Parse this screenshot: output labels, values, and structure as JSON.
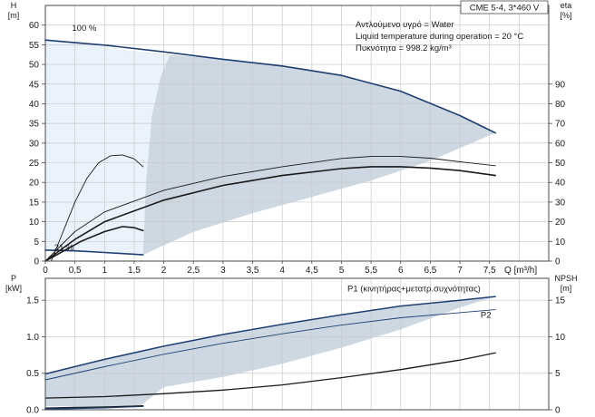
{
  "chart_data": [
    {
      "type": "line",
      "id": "performance",
      "title_box": "CME 5-4, 3*460 V",
      "info_lines": [
        "Αντλούμενο υγρό = Water",
        "Liquid temperature during operation = 20 °C",
        "Πυκνότητα = 998.2 kg/m³"
      ],
      "xlabel": "Q [m³/h]",
      "xlim": [
        0,
        8.5
      ],
      "x_ticks": [
        "0",
        "0,5",
        "1",
        "1,5",
        "2",
        "2,5",
        "3",
        "3,5",
        "4",
        "4,5",
        "5",
        "5,5",
        "6",
        "6,5",
        "7",
        "7,5"
      ],
      "x_tick_values": [
        0,
        0.5,
        1,
        1.5,
        2,
        2.5,
        3,
        3.5,
        4,
        4.5,
        5,
        5.5,
        6,
        6.5,
        7,
        7.5
      ],
      "left_axis": {
        "label": "H",
        "unit": "[m]",
        "ylim": [
          0,
          65
        ],
        "ticks": [
          "0",
          "5",
          "10",
          "15",
          "20",
          "25",
          "30",
          "35",
          "40",
          "45",
          "50",
          "55",
          "60"
        ],
        "tick_values": [
          0,
          5,
          10,
          15,
          20,
          25,
          30,
          35,
          40,
          45,
          50,
          55,
          60
        ]
      },
      "right_axis": {
        "label": "eta",
        "unit": "[%]",
        "ylim": [
          0,
          130
        ],
        "ticks": [
          "0",
          "10",
          "20",
          "30",
          "40",
          "50",
          "60",
          "70",
          "80",
          "90"
        ],
        "tick_values": [
          0,
          10,
          20,
          30,
          40,
          50,
          60,
          70,
          80,
          90
        ]
      },
      "annotations": [
        {
          "text": "100 %",
          "x": 0.45,
          "y": 58.5
        },
        {
          "text": "21 %",
          "x": 0.15,
          "y": 2.8
        }
      ],
      "grid": true,
      "region": {
        "upper": [
          [
            0,
            56.2
          ],
          [
            0.5,
            55.6
          ],
          [
            1,
            54.5
          ],
          [
            1.5,
            53.2
          ],
          [
            2,
            52.6
          ],
          [
            3,
            51.3
          ],
          [
            4,
            49.6
          ],
          [
            5,
            47.2
          ],
          [
            6,
            43.2
          ],
          [
            7,
            37.0
          ],
          [
            7.6,
            32.6
          ]
        ],
        "lower": [
          [
            7.6,
            32.6
          ],
          [
            6.5,
            25.5
          ],
          [
            5.5,
            20.5
          ],
          [
            4.5,
            16.3
          ],
          [
            3.5,
            12.2
          ],
          [
            2.5,
            7.4
          ],
          [
            2,
            4.0
          ],
          [
            1.65,
            1.6
          ],
          [
            1,
            2.2
          ],
          [
            0.5,
            2.6
          ],
          [
            0,
            2.8
          ]
        ],
        "unreachable_boundary": [
          [
            1.65,
            1.6
          ],
          [
            1.7,
            20
          ],
          [
            1.8,
            37
          ],
          [
            1.95,
            47
          ],
          [
            2.1,
            52.3
          ]
        ]
      },
      "series": [
        {
          "name": "",
          "axis": "left",
          "curve": "head",
          "points": [
            [
              0,
              56.2
            ],
            [
              1,
              54.9
            ],
            [
              2,
              53.2
            ],
            [
              3,
              51.3
            ],
            [
              4,
              49.6
            ],
            [
              5,
              47.2
            ],
            [
              6,
              43.2
            ],
            [
              7,
              37.0
            ],
            [
              7.6,
              32.6
            ]
          ],
          "color": "#1f3f73",
          "width": 1.6
        },
        {
          "name": "",
          "axis": "left",
          "curve": "head",
          "points": [
            [
              0,
              2.8
            ],
            [
              0.5,
              2.6
            ],
            [
              1,
              2.2
            ],
            [
              1.65,
              1.6
            ]
          ],
          "color": "#1f3f73",
          "width": 1.6
        },
        {
          "name": "",
          "axis": "right",
          "curve": "efficiency",
          "points": [
            [
              0.1,
              0
            ],
            [
              0.3,
              15
            ],
            [
              0.5,
              30
            ],
            [
              0.7,
              42
            ],
            [
              0.9,
              50
            ],
            [
              1.1,
              53.5
            ],
            [
              1.3,
              54
            ],
            [
              1.5,
              52
            ],
            [
              1.65,
              48
            ]
          ],
          "color": "#1a1a1a",
          "width": 0.9
        },
        {
          "name": "",
          "axis": "right",
          "curve": "efficiency",
          "points": [
            [
              0,
              0
            ],
            [
              0.5,
              15
            ],
            [
              1,
              25
            ],
            [
              2,
              36
            ],
            [
              3,
              43
            ],
            [
              4,
              48
            ],
            [
              5,
              52.2
            ],
            [
              5.5,
              53.2
            ],
            [
              6,
              53.2
            ],
            [
              6.5,
              52.3
            ],
            [
              7,
              50.5
            ],
            [
              7.6,
              48.5
            ]
          ],
          "color": "#1a1a1a",
          "width": 0.9
        },
        {
          "name": "",
          "axis": "right",
          "curve": "efficiency",
          "points": [
            [
              0,
              0
            ],
            [
              0.5,
              11
            ],
            [
              1,
              20
            ],
            [
              2,
              31
            ],
            [
              3,
              38.5
            ],
            [
              4,
              43.5
            ],
            [
              5,
              47
            ],
            [
              5.5,
              48
            ],
            [
              6,
              48
            ],
            [
              6.5,
              47.3
            ],
            [
              7,
              46
            ],
            [
              7.6,
              43.5
            ]
          ],
          "color": "#1a1a1a",
          "width": 1.6
        },
        {
          "name": "",
          "axis": "right",
          "curve": "efficiency",
          "points": [
            [
              0,
              0
            ],
            [
              0.3,
              5
            ],
            [
              0.6,
              10
            ],
            [
              1,
              15
            ],
            [
              1.3,
              17.5
            ],
            [
              1.5,
              17
            ],
            [
              1.65,
              15.5
            ]
          ],
          "color": "#1a1a1a",
          "width": 1.6
        }
      ]
    },
    {
      "type": "line",
      "id": "power",
      "xlim": [
        0,
        8.5
      ],
      "left_axis": {
        "label": "P",
        "unit": "[kW]",
        "ylim": [
          0,
          1.8
        ],
        "ticks": [
          "0.0",
          "0.5",
          "1.0",
          "1.5"
        ],
        "tick_values": [
          0,
          0.5,
          1.0,
          1.5
        ]
      },
      "right_axis": {
        "label": "NPSH",
        "unit": "[m]",
        "ylim": [
          0,
          18
        ],
        "ticks": [
          "0",
          "5",
          "10",
          "15"
        ],
        "tick_values": [
          0,
          5,
          10,
          15
        ]
      },
      "grid": true,
      "region": {
        "upper": [
          [
            0,
            0.49
          ],
          [
            1,
            0.69
          ],
          [
            2,
            0.87
          ],
          [
            3,
            1.03
          ],
          [
            4,
            1.17
          ],
          [
            5,
            1.3
          ],
          [
            6,
            1.42
          ],
          [
            7,
            1.5
          ],
          [
            7.6,
            1.55
          ]
        ],
        "lower": [
          [
            7.6,
            1.55
          ],
          [
            7.0,
            1.4
          ],
          [
            6.0,
            1.1
          ],
          [
            5.0,
            0.85
          ],
          [
            4.0,
            0.63
          ],
          [
            3.0,
            0.45
          ],
          [
            2.0,
            0.31
          ],
          [
            1.6,
            0.05
          ],
          [
            0,
            0.05
          ]
        ],
        "light_region": [
          [
            0,
            0.38
          ],
          [
            1.6,
            0.3
          ],
          [
            1.6,
            0.04
          ],
          [
            0,
            0.04
          ]
        ]
      },
      "series": [
        {
          "name": "P1 (κινητήρας+μετατρ.συχνότητας)",
          "axis": "left",
          "label_at": [
            5.1,
            1.62
          ],
          "points": [
            [
              0,
              0.49
            ],
            [
              1,
              0.69
            ],
            [
              2,
              0.87
            ],
            [
              3,
              1.03
            ],
            [
              4,
              1.17
            ],
            [
              5,
              1.3
            ],
            [
              6,
              1.42
            ],
            [
              7,
              1.5
            ],
            [
              7.6,
              1.55
            ]
          ],
          "color": "#1f3f73",
          "width": 1.5
        },
        {
          "name": "P2",
          "axis": "left",
          "label_at": [
            7.35,
            1.26
          ],
          "points": [
            [
              0,
              0.41
            ],
            [
              1,
              0.59
            ],
            [
              2,
              0.76
            ],
            [
              3,
              0.91
            ],
            [
              4,
              1.04
            ],
            [
              5,
              1.16
            ],
            [
              6,
              1.26
            ],
            [
              7,
              1.33
            ],
            [
              7.6,
              1.37
            ]
          ],
          "color": "#1f3f73",
          "width": 0.9
        },
        {
          "name": "",
          "axis": "right",
          "curve": "npsh",
          "points": [
            [
              0,
              1.6
            ],
            [
              1,
              1.8
            ],
            [
              2,
              2.2
            ],
            [
              3,
              2.7
            ],
            [
              4,
              3.4
            ],
            [
              5,
              4.4
            ],
            [
              6,
              5.5
            ],
            [
              7,
              6.8
            ],
            [
              7.6,
              7.8
            ]
          ],
          "color": "#1a1a1a",
          "width": 1.3
        },
        {
          "name": "",
          "axis": "left",
          "curve": "power",
          "points": [
            [
              0,
              0.01
            ],
            [
              0.5,
              0.02
            ],
            [
              1,
              0.03
            ],
            [
              1.65,
              0.05
            ]
          ],
          "color": "#1f3f73",
          "width": 1.8
        },
        {
          "name": "",
          "axis": "left",
          "curve": "power",
          "points": [
            [
              0,
              0.025
            ],
            [
              0.5,
              0.035
            ],
            [
              1,
              0.04
            ],
            [
              1.65,
              0.055
            ]
          ],
          "color": "#1a1a1a",
          "width": 1.0
        }
      ]
    }
  ]
}
